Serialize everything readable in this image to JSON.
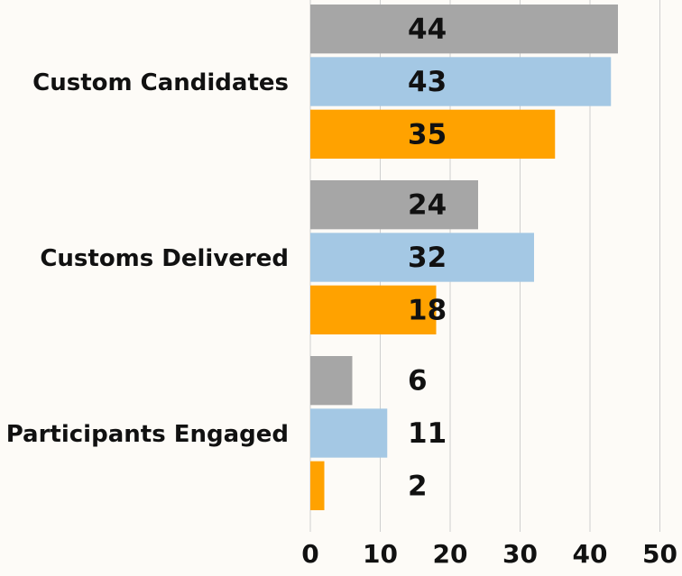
{
  "chart_data": {
    "type": "hbar",
    "categories": [
      "Custom Candidates",
      "Customs Delivered",
      "Participants Engaged"
    ],
    "series": [
      {
        "color": "#a6a6a6",
        "values": [
          44,
          24,
          6
        ]
      },
      {
        "color": "#a4c8e4",
        "values": [
          43,
          32,
          11
        ]
      },
      {
        "color": "#ffa200",
        "values": [
          35,
          18,
          2
        ]
      }
    ],
    "xlim": [
      0,
      50
    ],
    "xticks": [
      0,
      10,
      20,
      30,
      40,
      50
    ],
    "grid": true
  }
}
